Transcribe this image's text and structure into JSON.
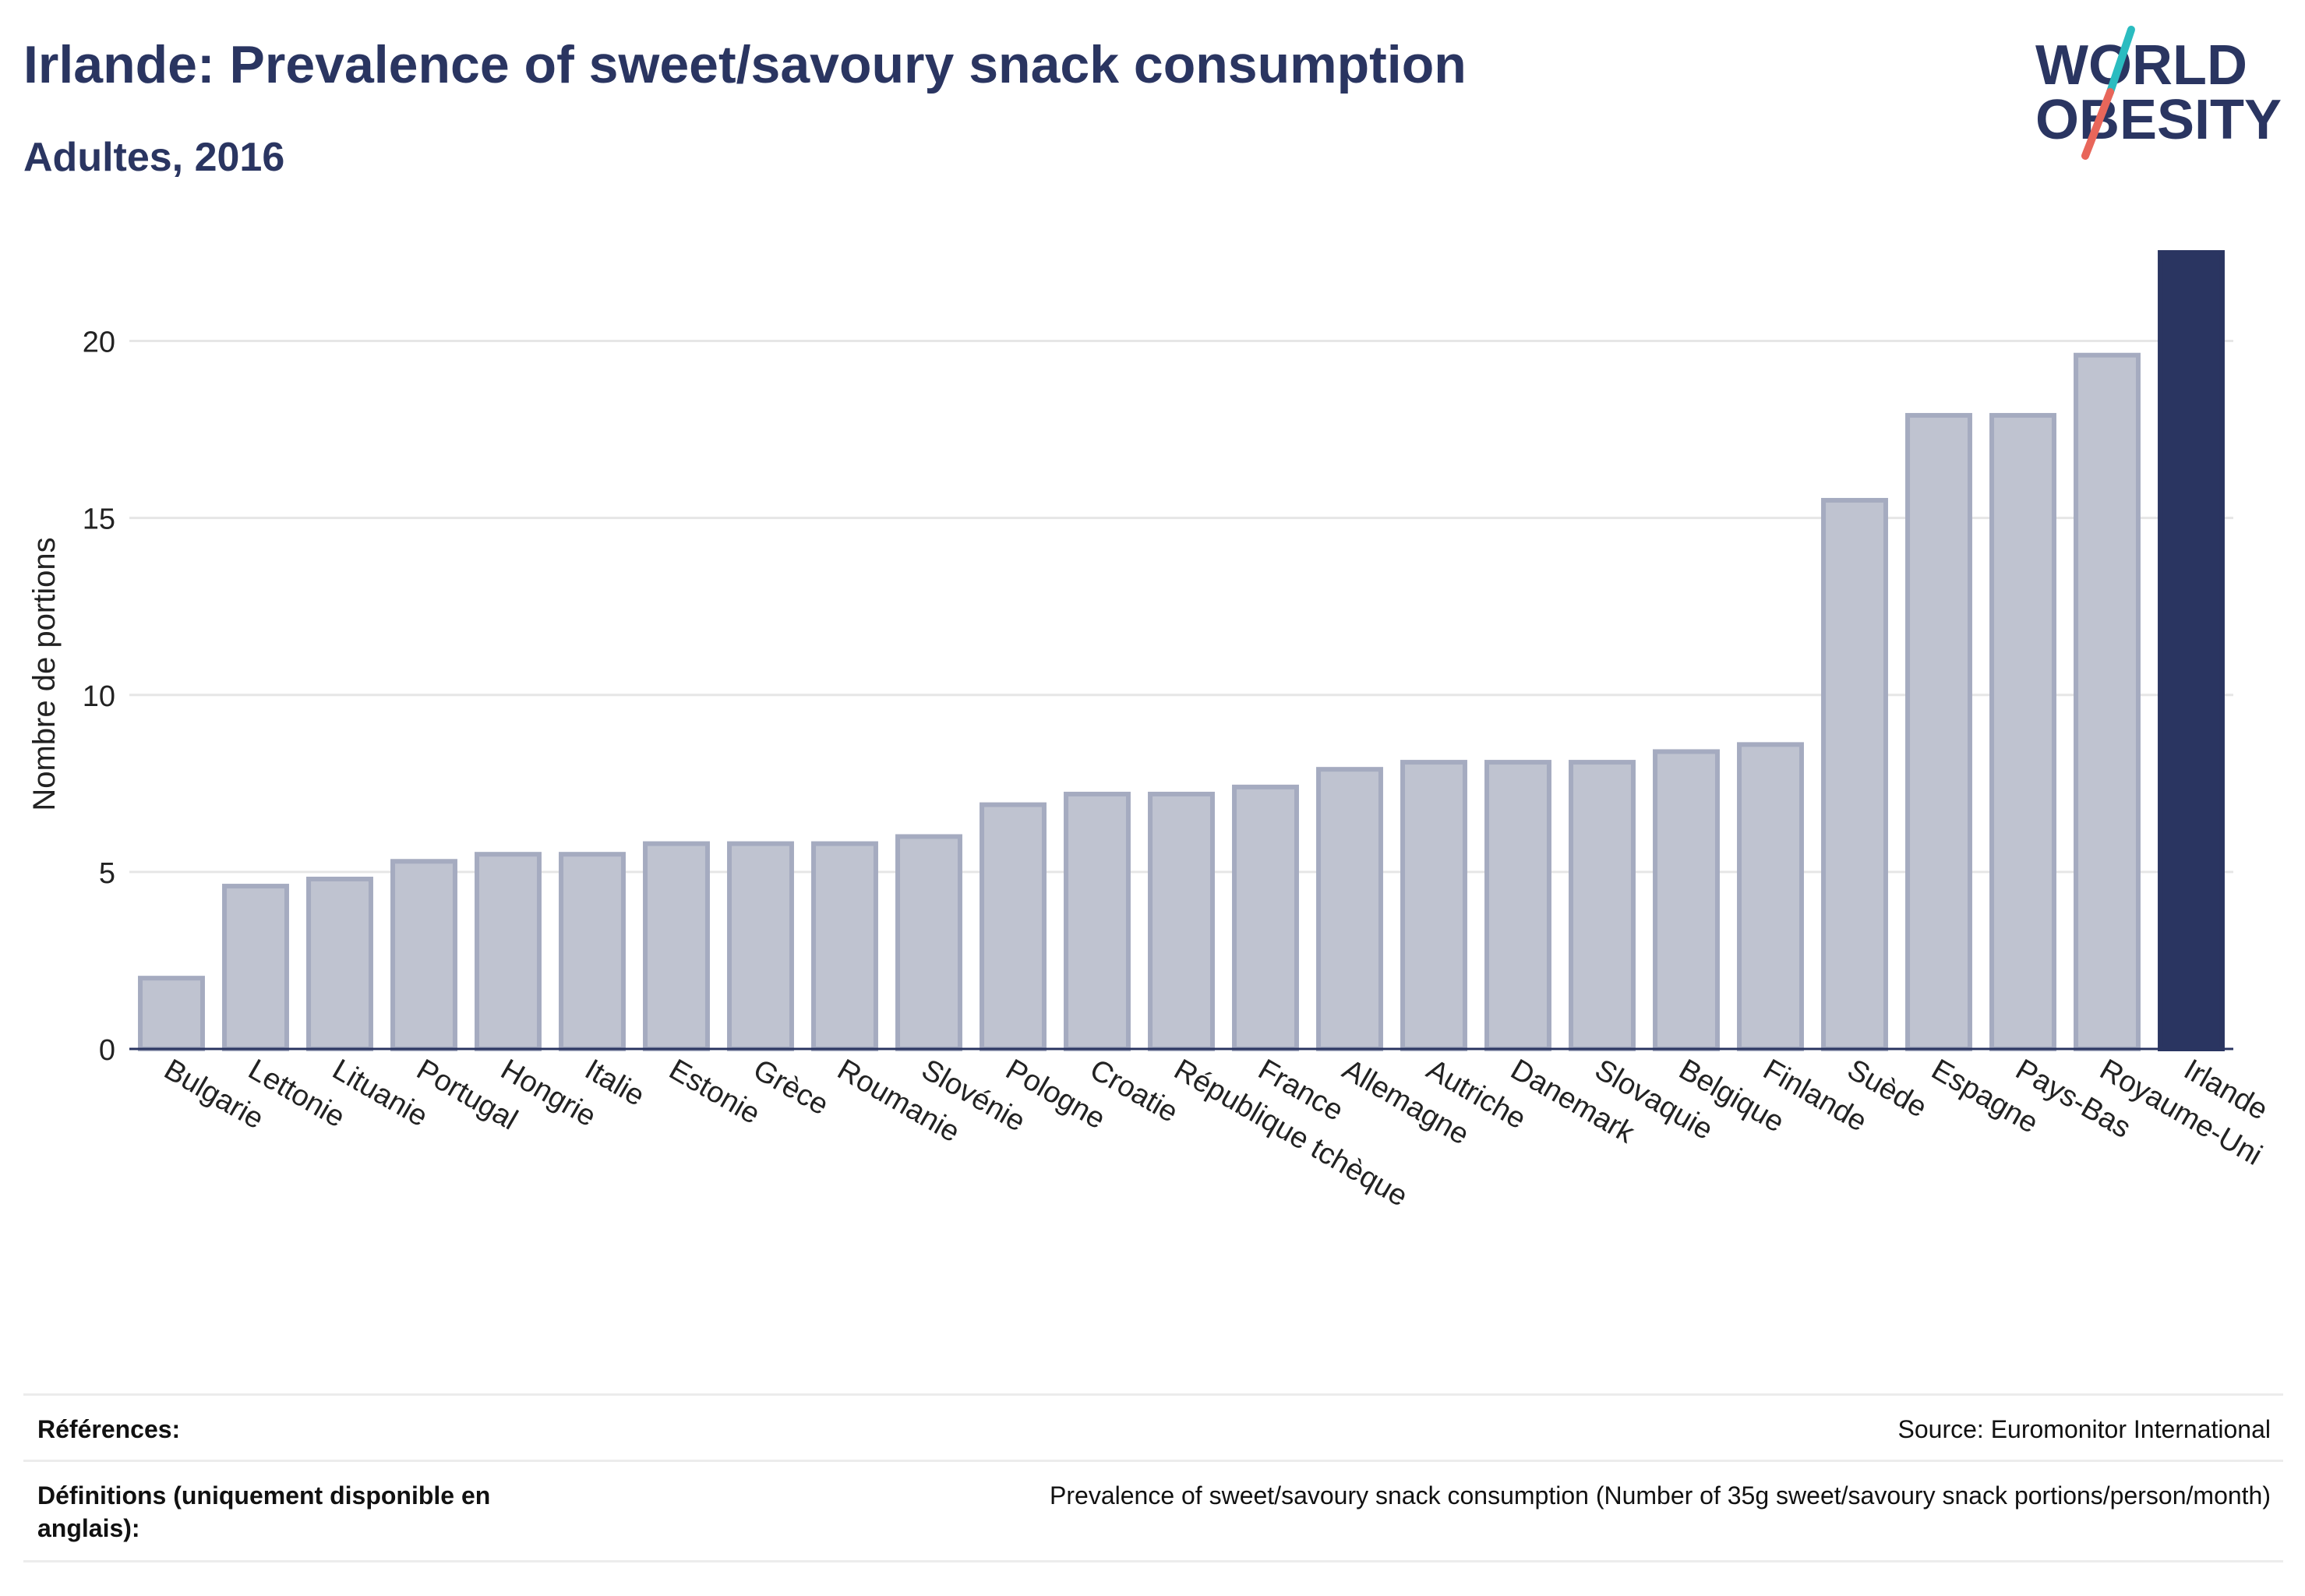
{
  "header": {
    "title": "Irlande: Prevalence of sweet/savoury snack consumption",
    "subtitle": "Adultes, 2016"
  },
  "logo": {
    "line1": "WORLD",
    "line2": "OBESITY",
    "colors": {
      "text": "#2a3561",
      "slash_top": "#2bbcc0",
      "slash_bottom": "#e8665a"
    }
  },
  "colors": {
    "bar_fill": "#bfc3d0",
    "bar_stroke": "#a5abc0",
    "highlight": "#2a3561",
    "grid": "#e6e6e6",
    "axis": "#2a3561"
  },
  "chart_data": {
    "type": "bar",
    "title": "",
    "xlabel": "",
    "ylabel": "Nombre de portions",
    "ylim": [
      0,
      22.5
    ],
    "yticks": [
      0,
      5,
      10,
      15,
      20
    ],
    "grid": true,
    "highlight_category": "Irlande",
    "categories": [
      "Bulgarie",
      "Lettonie",
      "Lituanie",
      "Portugal",
      "Hongrie",
      "Italie",
      "Estonie",
      "Grèce",
      "Roumanie",
      "Slovénie",
      "Pologne",
      "Croatie",
      "République tchèque",
      "France",
      "Allemagne",
      "Autriche",
      "Danemark",
      "Slovaquie",
      "Belgique",
      "Finlande",
      "Suède",
      "Espagne",
      "Pays-Bas",
      "Royaume-Uni",
      "Irlande"
    ],
    "values": [
      2.0,
      4.6,
      4.8,
      5.3,
      5.5,
      5.5,
      5.8,
      5.8,
      5.8,
      6.0,
      6.9,
      7.2,
      7.2,
      7.4,
      7.9,
      8.1,
      8.1,
      8.1,
      8.4,
      8.6,
      15.5,
      17.9,
      17.9,
      19.6,
      22.5
    ]
  },
  "footer": {
    "references_label": "Références:",
    "references_value": "Source: Euromonitor International",
    "definitions_label": "Définitions (uniquement disponible en anglais):",
    "definitions_value": "Prevalence of sweet/savoury snack consumption (Number of 35g sweet/savoury snack portions/person/month)"
  }
}
